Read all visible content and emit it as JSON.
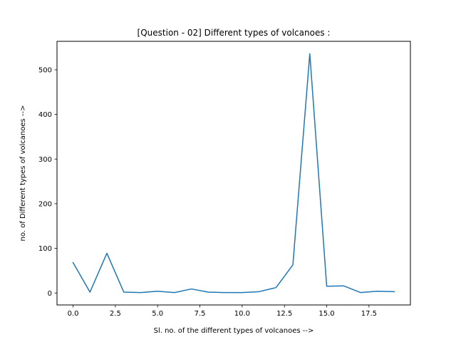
{
  "chart_data": {
    "type": "line",
    "title": "[Question - 02] Different types of volcanoes :",
    "xlabel": "Sl. no. of the different types of volcanoes -->",
    "ylabel": "no. of Different types of volcanoes -->",
    "xlim": [
      -0.95,
      19.95
    ],
    "ylim": [
      -26.8,
      563.8
    ],
    "xticks": [
      0,
      2.5,
      5,
      7.5,
      10,
      12.5,
      15,
      17.5
    ],
    "xtick_labels": [
      "0.0",
      "2.5",
      "5.0",
      "7.5",
      "10.0",
      "12.5",
      "15.0",
      "17.5"
    ],
    "yticks": [
      0,
      100,
      200,
      300,
      400,
      500
    ],
    "ytick_labels": [
      "0",
      "100",
      "200",
      "300",
      "400",
      "500"
    ],
    "grid": false,
    "series": [
      {
        "color": "#1f77b4",
        "x": [
          0,
          1,
          2,
          3,
          4,
          5,
          6,
          7,
          8,
          9,
          10,
          11,
          12,
          13,
          14,
          15,
          16,
          17,
          18,
          19
        ],
        "y": [
          68,
          2,
          89,
          2,
          1,
          4,
          1,
          9,
          2,
          1,
          1,
          3,
          12,
          63,
          536,
          15,
          16,
          1,
          4,
          3
        ]
      }
    ]
  }
}
